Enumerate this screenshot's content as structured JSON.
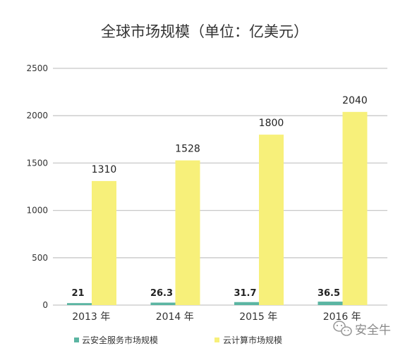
{
  "chart_data": {
    "type": "bar",
    "title": "全球市场规模（单位：亿美元）",
    "categories": [
      "2013 年",
      "2014 年",
      "2015 年",
      "2016 年"
    ],
    "series": [
      {
        "name": "云安全服务市场规模",
        "values": [
          21,
          26.3,
          31.7,
          36.5
        ],
        "labels": [
          "21",
          "26.3",
          "31.7",
          "36.5"
        ],
        "color": "#5bb5a2"
      },
      {
        "name": "云计算市场规模",
        "values": [
          1310,
          1528,
          1800,
          2040
        ],
        "labels": [
          "1310",
          "1528",
          "1800",
          "2040"
        ],
        "color": "#f7f07a"
      }
    ],
    "ylim": [
      0,
      2500
    ],
    "yticks": [
      0,
      500,
      1000,
      1500,
      2000,
      2500
    ],
    "grid": true,
    "legend_position": "bottom"
  },
  "watermark": {
    "text": "安全牛",
    "icon": "wechat-icon"
  },
  "colors": {
    "grid": "#c8c8c8",
    "text": "#333333"
  }
}
